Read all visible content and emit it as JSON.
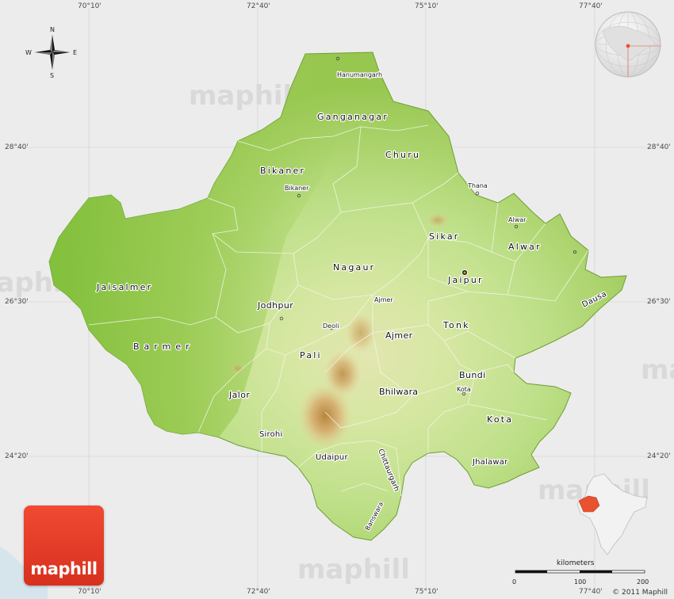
{
  "map": {
    "background_color": "#ececec",
    "land_color": "#9ccc55",
    "highlight_color": "#e8522e",
    "longitude_labels": [
      "70°10'",
      "72°40'",
      "75°10'",
      "77°40'"
    ],
    "latitude_labels": [
      "28°40'",
      "26°30'",
      "24°20'"
    ]
  },
  "compass": {
    "north": "N",
    "south": "S",
    "east": "E",
    "west": "W"
  },
  "regions": [
    {
      "name": "Ganganagar"
    },
    {
      "name": "Churu"
    },
    {
      "name": "Bikaner"
    },
    {
      "name": "Sikar"
    },
    {
      "name": "Alwar"
    },
    {
      "name": "Nagaur"
    },
    {
      "name": "Jaipur"
    },
    {
      "name": "Jaisalmer"
    },
    {
      "name": "Jodhpur"
    },
    {
      "name": "Dausa"
    },
    {
      "name": "Tonk"
    },
    {
      "name": "Barmer"
    },
    {
      "name": "Pali"
    },
    {
      "name": "Ajmer"
    },
    {
      "name": "Bundi"
    },
    {
      "name": "Jalor"
    },
    {
      "name": "Bhilwara"
    },
    {
      "name": "Kota"
    },
    {
      "name": "Sirohi"
    },
    {
      "name": "Udaipur"
    },
    {
      "name": "Jhalawar"
    },
    {
      "name": "Chittaurgarh"
    },
    {
      "name": "Banswara"
    }
  ],
  "cities": [
    {
      "name": "Hanumangarh"
    },
    {
      "name": "Bikaner"
    },
    {
      "name": "Thana"
    },
    {
      "name": "Alwar"
    },
    {
      "name": "Ajmer"
    },
    {
      "name": "Deoli"
    },
    {
      "name": "Kota"
    }
  ],
  "watermark": "maphill",
  "logo_text": "maphill",
  "scale": {
    "title": "kilometers",
    "ticks": [
      "0",
      "100",
      "200"
    ]
  },
  "copyright": "© 2011 Maphill"
}
